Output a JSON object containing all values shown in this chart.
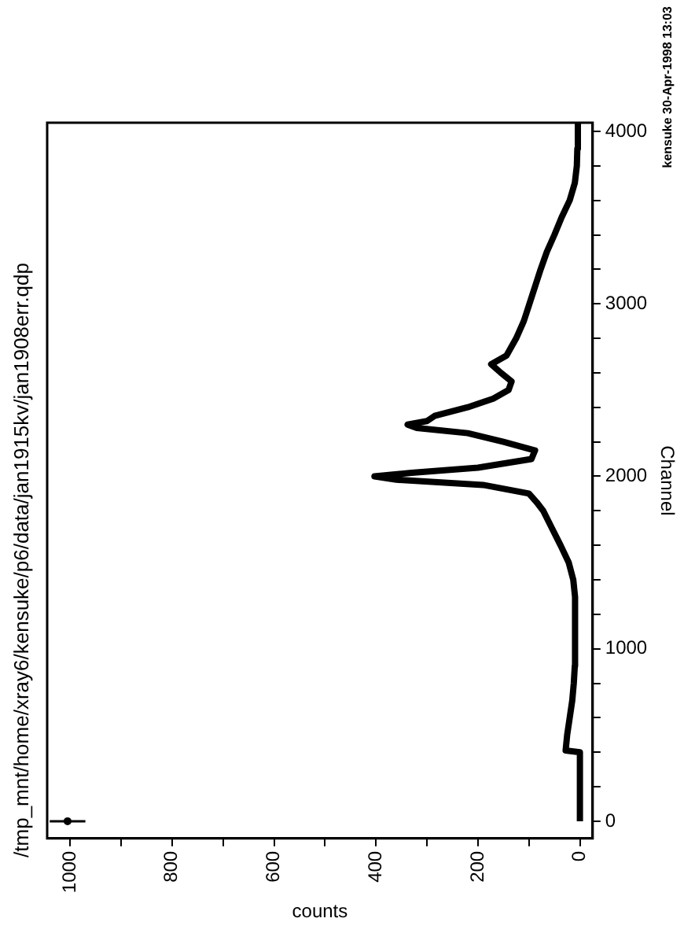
{
  "chart_data": {
    "type": "line",
    "orientation": "horizontal",
    "title": "/tmp_mnt/home/xray6/kensuke/p6/data/jan1915kv/jan1908err.qdp",
    "ylabel": "Channel",
    "xlabel": "counts",
    "annotations": [
      "kensuke 30-Apr-1998 13:03"
    ],
    "ylim": [
      -100,
      4050
    ],
    "xlim": [
      1045,
      -25
    ],
    "yticks": [
      0,
      {
        "value": 200,
        "label": null
      },
      {
        "value": 400,
        "label": null
      },
      {
        "value": 600,
        "label": null
      },
      {
        "value": 800,
        "label": null
      },
      1000,
      {
        "value": 1200,
        "label": null
      },
      {
        "value": 1400,
        "label": null
      },
      {
        "value": 1600,
        "label": null
      },
      {
        "value": 1800,
        "label": null
      },
      2000,
      {
        "value": 2200,
        "label": null
      },
      {
        "value": 2400,
        "label": null
      },
      {
        "value": 2600,
        "label": null
      },
      {
        "value": 2800,
        "label": null
      },
      3000,
      {
        "value": 3200,
        "label": null
      },
      {
        "value": 3400,
        "label": null
      },
      {
        "value": 3600,
        "label": null
      },
      {
        "value": 3800,
        "label": null
      },
      4000
    ],
    "xticks": [
      0,
      {
        "value": 100,
        "label": null
      },
      200,
      {
        "value": 300,
        "label": null
      },
      400,
      {
        "value": 500,
        "label": null
      },
      600,
      {
        "value": 700,
        "label": null
      },
      800,
      {
        "value": 900,
        "label": null
      },
      1000
    ],
    "grid": false,
    "legend": false,
    "line_style": "solid",
    "series": [
      {
        "type": "line",
        "marker": "none",
        "color": "#000000",
        "x": [
          0,
          400,
          410,
          500,
          600,
          700,
          800,
          900,
          1000,
          1100,
          1200,
          1300,
          1400,
          1500,
          1600,
          1700,
          1800,
          1850,
          1900,
          1950,
          1980,
          2000,
          2020,
          2050,
          2100,
          2150,
          2200,
          2250,
          2280,
          2300,
          2320,
          2350,
          2400,
          2450,
          2500,
          2550,
          2600,
          2650,
          2700,
          2800,
          2900,
          3000,
          3100,
          3200,
          3300,
          3400,
          3500,
          3600,
          3700,
          3800,
          3900,
          4000,
          4050
        ],
        "values": [
          0,
          0,
          28,
          25,
          20,
          15,
          12,
          10,
          10,
          9,
          9,
          10,
          13,
          22,
          38,
          55,
          72,
          85,
          100,
          190,
          360,
          403,
          330,
          200,
          95,
          88,
          150,
          220,
          320,
          338,
          300,
          285,
          220,
          170,
          140,
          134,
          155,
          174,
          144,
          125,
          110,
          99,
          88,
          77,
          65,
          50,
          36,
          20,
          10,
          6,
          5,
          5,
          3
        ]
      },
      {
        "type": "scatter",
        "marker": "circle",
        "color": "#000000",
        "x": [
          0
        ],
        "values": [
          1005
        ],
        "errors": [
          35
        ]
      }
    ]
  }
}
